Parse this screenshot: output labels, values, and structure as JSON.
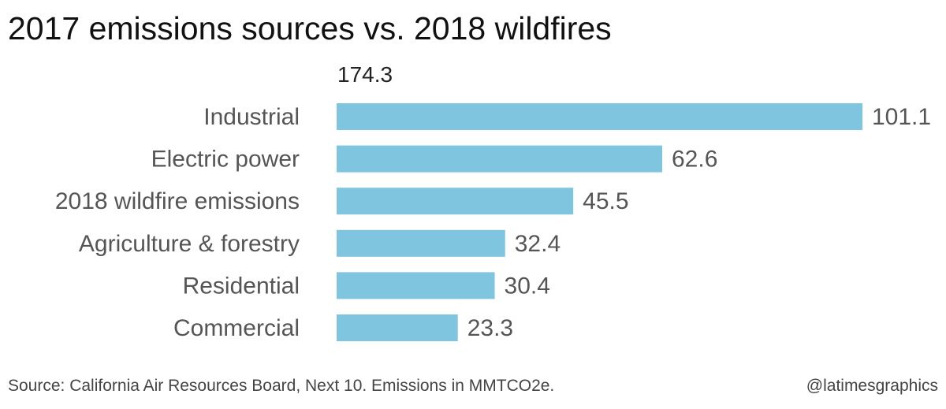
{
  "title": "2017 emissions sources vs. 2018 wildfires",
  "footer": {
    "source": "Source: California Air Resources Board, Next 10. Emissions in MMTCO2e.",
    "credit": "@latimesgraphics"
  },
  "chart_data": {
    "type": "bar",
    "orientation": "horizontal",
    "title": "2017 emissions sources vs. 2018 wildfires",
    "xlabel": "",
    "ylabel": "",
    "axis_max_label": "174.3",
    "categories": [
      "Industrial",
      "Electric power",
      "2018 wildfire emissions",
      "Agriculture & forestry",
      "Residential",
      "Commercial"
    ],
    "values": [
      101.1,
      62.6,
      45.5,
      32.4,
      30.4,
      23.3
    ],
    "value_labels": [
      "101.1",
      "62.6",
      "45.5",
      "32.4",
      "30.4",
      "23.3"
    ],
    "xlim": [
      0,
      101.1
    ],
    "bar_color": "#7fc5df",
    "grid": false,
    "legend": "none"
  }
}
